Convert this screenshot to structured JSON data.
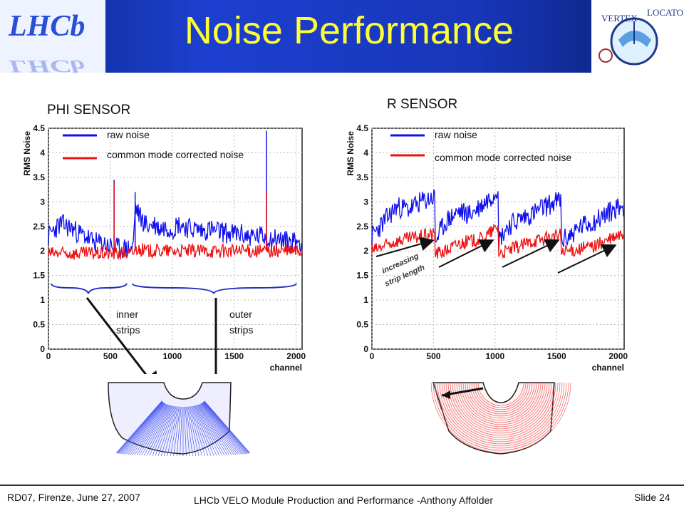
{
  "slide": {
    "title": "Noise Performance",
    "footer_left": "RD07, Firenze, June 27, 2007",
    "footer_center": "LHCb VELO Module Production and Performance -Anthony Affolder",
    "footer_right": "Slide 24",
    "logo_left_text": "LHCb",
    "logo_right_text": "VERTEX LOCATOR"
  },
  "colors": {
    "raw": "#1010ee",
    "cm": "#ee1010",
    "title": "#ffff33",
    "header": "#1736b8"
  },
  "chart_data": [
    {
      "type": "line",
      "panel_label": "PHI SENSOR",
      "xlabel": "channel",
      "ylabel": "RMS Noise",
      "xlim": [
        0,
        2048
      ],
      "ylim": [
        0,
        4.5
      ],
      "xticks": [
        "0",
        "500",
        "1000",
        "1500",
        "2000"
      ],
      "yticks": [
        "0",
        "0.5",
        "1",
        "1.5",
        "2",
        "2.5",
        "3",
        "3.5",
        "4",
        "4.5"
      ],
      "series": [
        {
          "name": "raw noise",
          "color": "#1010ee",
          "x": [
            0,
            50,
            100,
            150,
            200,
            250,
            300,
            350,
            400,
            450,
            500,
            550,
            600,
            650,
            683,
            700,
            750,
            800,
            850,
            900,
            950,
            1000,
            1050,
            1100,
            1150,
            1200,
            1250,
            1300,
            1350,
            1400,
            1450,
            1500,
            1550,
            1600,
            1650,
            1700,
            1750,
            1800,
            1850,
            1900,
            1950,
            2000,
            2048
          ],
          "y": [
            2.3,
            2.45,
            2.55,
            2.5,
            2.45,
            2.35,
            2.3,
            2.2,
            2.15,
            2.15,
            2.1,
            2.05,
            2.05,
            2.05,
            2.05,
            2.9,
            2.65,
            2.5,
            2.55,
            2.45,
            2.5,
            2.45,
            2.55,
            2.5,
            2.45,
            2.45,
            2.4,
            2.45,
            2.4,
            2.4,
            2.35,
            2.35,
            2.35,
            2.3,
            2.3,
            2.3,
            2.3,
            2.25,
            2.25,
            2.2,
            2.2,
            2.2,
            2.2
          ],
          "spikes": [
            [
              530,
              3.45
            ],
            [
              700,
              3.2
            ],
            [
              1760,
              4.45
            ]
          ]
        },
        {
          "name": "common mode corrected noise",
          "color": "#ee1010",
          "x": [
            0,
            100,
            200,
            300,
            400,
            500,
            600,
            683,
            700,
            800,
            900,
            1000,
            1100,
            1200,
            1300,
            1400,
            1500,
            1600,
            1700,
            1800,
            1900,
            2000,
            2048
          ],
          "y": [
            1.95,
            1.95,
            1.95,
            1.95,
            1.95,
            1.95,
            1.95,
            1.95,
            2.05,
            2.0,
            2.0,
            2.0,
            2.0,
            2.0,
            2.0,
            2.0,
            2.0,
            2.0,
            2.0,
            2.0,
            2.0,
            2.0,
            2.0
          ],
          "spikes": [
            [
              530,
              3.4
            ],
            [
              1760,
              3.2
            ]
          ]
        }
      ],
      "annotations": [
        "inner",
        "strips",
        "outer",
        "strips"
      ]
    },
    {
      "type": "line",
      "panel_label": "R SENSOR",
      "xlabel": "channel",
      "ylabel": "RMS Noise",
      "xlim": [
        0,
        2048
      ],
      "ylim": [
        0,
        4.5
      ],
      "xticks": [
        "0",
        "500",
        "1000",
        "1500",
        "2000"
      ],
      "yticks": [
        "0",
        "0.5",
        "1",
        "1.5",
        "2",
        "2.5",
        "3",
        "3.5",
        "4",
        "4.5"
      ],
      "series": [
        {
          "name": "raw noise",
          "color": "#1010ee",
          "x": [
            0,
            100,
            200,
            300,
            400,
            512,
            513,
            600,
            700,
            800,
            900,
            1000,
            1024,
            1025,
            1100,
            1200,
            1300,
            1400,
            1500,
            1536,
            1537,
            1600,
            1700,
            1800,
            1900,
            2000,
            2048
          ],
          "y": [
            2.3,
            2.6,
            2.9,
            2.85,
            3.0,
            3.1,
            2.2,
            2.6,
            2.8,
            2.75,
            2.95,
            3.2,
            3.35,
            2.2,
            2.5,
            2.65,
            2.75,
            2.9,
            3.0,
            3.05,
            2.2,
            2.3,
            2.5,
            2.6,
            2.75,
            2.9,
            2.9
          ]
        },
        {
          "name": "common mode corrected noise",
          "color": "#ee1010",
          "x": [
            0,
            100,
            200,
            300,
            400,
            512,
            513,
            600,
            700,
            800,
            900,
            1000,
            1024,
            1025,
            1100,
            1200,
            1300,
            1400,
            1500,
            1536,
            1537,
            1600,
            1700,
            1800,
            1900,
            2000,
            2048
          ],
          "y": [
            2.0,
            2.1,
            2.2,
            2.25,
            2.3,
            2.35,
            1.95,
            2.0,
            2.15,
            2.2,
            2.25,
            2.45,
            2.5,
            1.95,
            2.0,
            2.1,
            2.2,
            2.25,
            2.3,
            2.35,
            1.95,
            2.0,
            2.05,
            2.1,
            2.2,
            2.3,
            2.35
          ]
        }
      ],
      "annotations": [
        "increasing",
        "strip length"
      ]
    }
  ]
}
